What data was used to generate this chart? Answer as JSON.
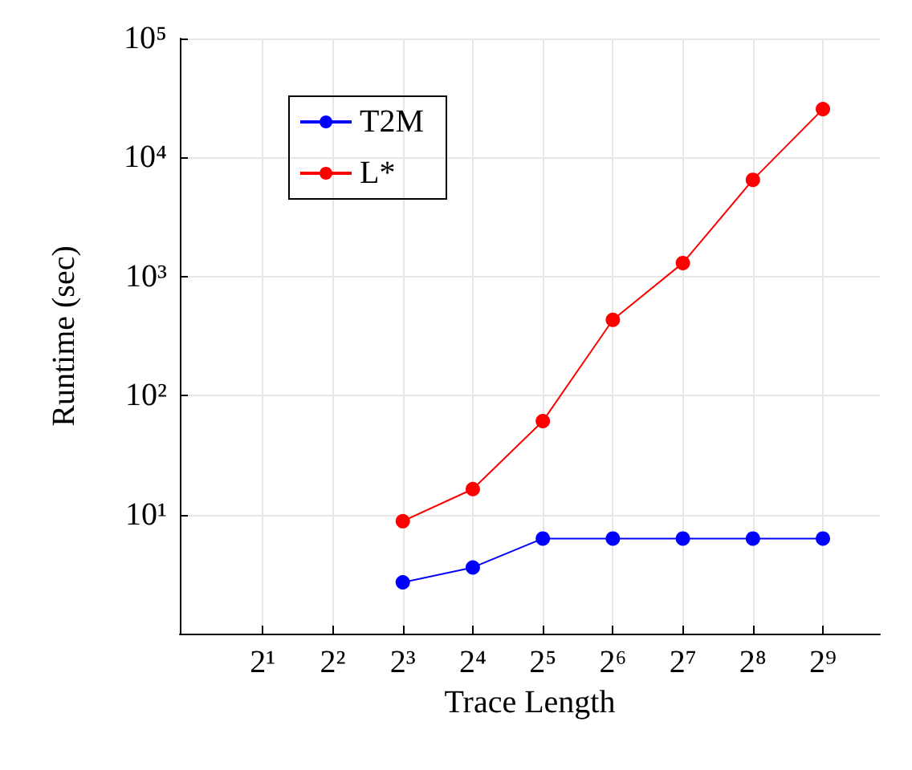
{
  "chart_data": {
    "type": "line",
    "xlabel": "Trace Length",
    "ylabel": "Runtime (sec)",
    "x": [
      8,
      16,
      32,
      64,
      128,
      256,
      512
    ],
    "series": [
      {
        "name": "T2M",
        "color": "#0000ff",
        "values": [
          2.7,
          3.6,
          6.3,
          6.3,
          6.3,
          6.3,
          6.3
        ]
      },
      {
        "name": "L*",
        "color": "#ff0000",
        "values": [
          8.8,
          16.4,
          61,
          433,
          1300,
          6500,
          25500
        ]
      }
    ],
    "log": "xy",
    "xlim": [
      0.88,
      900
    ],
    "ylim": [
      1,
      100000
    ],
    "xticks": [
      {
        "value": 2,
        "label": "2¹"
      },
      {
        "value": 4,
        "label": "2²"
      },
      {
        "value": 8,
        "label": "2³"
      },
      {
        "value": 16,
        "label": "2⁴"
      },
      {
        "value": 32,
        "label": "2⁵"
      },
      {
        "value": 64,
        "label": "2⁶"
      },
      {
        "value": 128,
        "label": "2⁷"
      },
      {
        "value": 256,
        "label": "2⁸"
      },
      {
        "value": 512,
        "label": "2⁹"
      }
    ],
    "yticks": [
      {
        "value": 1,
        "label": null
      },
      {
        "value": 10,
        "label": "10¹"
      },
      {
        "value": 100,
        "label": "10²"
      },
      {
        "value": 1000,
        "label": "10³"
      },
      {
        "value": 10000,
        "label": "10⁴"
      },
      {
        "value": 100000,
        "label": "10⁵"
      }
    ],
    "grid": true,
    "legend": "top left",
    "marker": "circle",
    "line_style": "solid"
  }
}
